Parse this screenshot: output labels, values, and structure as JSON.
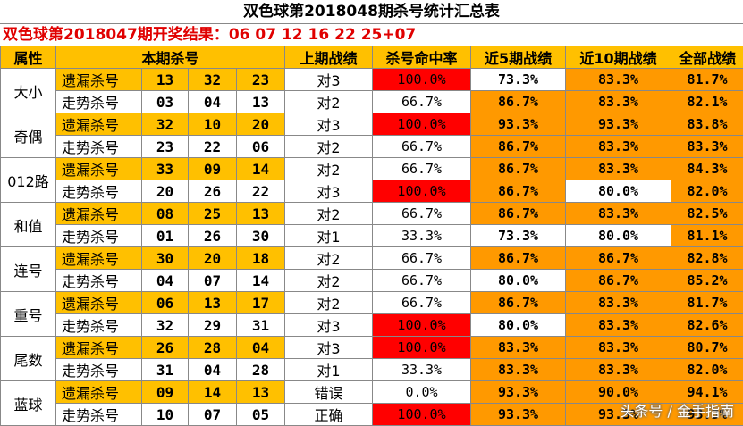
{
  "title": "双色球第2018048期杀号统计汇总表",
  "result_prefix": "双色球第2018047期开奖结果：",
  "result_numbers": "06 07 12 16 22 25+07",
  "headers": [
    "属性",
    "本期杀号",
    "上期战绩",
    "杀号命中率",
    "近5期战绩",
    "近10期战绩",
    "全部战绩"
  ],
  "groups": [
    {
      "attr": "大小",
      "rows": [
        {
          "kind": "遗漏杀号",
          "n1": "13",
          "n2": "32",
          "n3": "23",
          "last": "对3",
          "rate": "100.0%",
          "r5": "73.3%",
          "r10": "83.3%",
          "all": "81.7%"
        },
        {
          "kind": "走势杀号",
          "n1": "03",
          "n2": "04",
          "n3": "13",
          "last": "对2",
          "rate": "66.7%",
          "r5": "86.7%",
          "r10": "83.3%",
          "all": "82.1%"
        }
      ]
    },
    {
      "attr": "奇偶",
      "rows": [
        {
          "kind": "遗漏杀号",
          "n1": "32",
          "n2": "10",
          "n3": "20",
          "last": "对3",
          "rate": "100.0%",
          "r5": "93.3%",
          "r10": "93.3%",
          "all": "83.8%"
        },
        {
          "kind": "走势杀号",
          "n1": "23",
          "n2": "22",
          "n3": "06",
          "last": "对2",
          "rate": "66.7%",
          "r5": "86.7%",
          "r10": "83.3%",
          "all": "83.3%"
        }
      ]
    },
    {
      "attr": "012路",
      "rows": [
        {
          "kind": "遗漏杀号",
          "n1": "33",
          "n2": "09",
          "n3": "14",
          "last": "对2",
          "rate": "66.7%",
          "r5": "86.7%",
          "r10": "83.3%",
          "all": "84.3%"
        },
        {
          "kind": "走势杀号",
          "n1": "20",
          "n2": "26",
          "n3": "22",
          "last": "对3",
          "rate": "100.0%",
          "r5": "86.7%",
          "r10": "80.0%",
          "all": "82.0%"
        }
      ]
    },
    {
      "attr": "和值",
      "rows": [
        {
          "kind": "遗漏杀号",
          "n1": "08",
          "n2": "25",
          "n3": "13",
          "last": "对2",
          "rate": "66.7%",
          "r5": "86.7%",
          "r10": "83.3%",
          "all": "82.5%"
        },
        {
          "kind": "走势杀号",
          "n1": "01",
          "n2": "26",
          "n3": "30",
          "last": "对1",
          "rate": "33.3%",
          "r5": "73.3%",
          "r10": "80.0%",
          "all": "81.1%"
        }
      ]
    },
    {
      "attr": "连号",
      "rows": [
        {
          "kind": "遗漏杀号",
          "n1": "30",
          "n2": "20",
          "n3": "18",
          "last": "对2",
          "rate": "66.7%",
          "r5": "86.7%",
          "r10": "86.7%",
          "all": "82.8%"
        },
        {
          "kind": "走势杀号",
          "n1": "04",
          "n2": "07",
          "n3": "14",
          "last": "对2",
          "rate": "66.7%",
          "r5": "80.0%",
          "r10": "86.7%",
          "all": "85.2%"
        }
      ]
    },
    {
      "attr": "重号",
      "rows": [
        {
          "kind": "遗漏杀号",
          "n1": "06",
          "n2": "13",
          "n3": "17",
          "last": "对2",
          "rate": "66.7%",
          "r5": "86.7%",
          "r10": "83.3%",
          "all": "81.7%"
        },
        {
          "kind": "走势杀号",
          "n1": "32",
          "n2": "29",
          "n3": "31",
          "last": "对3",
          "rate": "100.0%",
          "r5": "80.0%",
          "r10": "83.3%",
          "all": "82.6%"
        }
      ]
    },
    {
      "attr": "尾数",
      "rows": [
        {
          "kind": "遗漏杀号",
          "n1": "26",
          "n2": "28",
          "n3": "04",
          "last": "对3",
          "rate": "100.0%",
          "r5": "83.3%",
          "r10": "83.3%",
          "all": "80.7%"
        },
        {
          "kind": "走势杀号",
          "n1": "31",
          "n2": "04",
          "n3": "28",
          "last": "对1",
          "rate": "33.3%",
          "r5": "83.3%",
          "r10": "83.3%",
          "all": "82.0%"
        }
      ]
    },
    {
      "attr": "蓝球",
      "rows": [
        {
          "kind": "遗漏杀号",
          "n1": "09",
          "n2": "14",
          "n3": "13",
          "last": "错误",
          "rate": "0.0%",
          "r5": "93.3%",
          "r10": "90.0%",
          "all": "94.1%"
        },
        {
          "kind": "走势杀号",
          "n1": "10",
          "n2": "07",
          "n3": "05",
          "last": "正确",
          "rate": "100.0%",
          "r5": "93.3%",
          "r10": "93.3%",
          "all": "93.3%"
        }
      ]
    }
  ],
  "watermark": "头条号 / 金手指南",
  "colors": {
    "header_yellow": "#ffc000",
    "light_yellow": "#ffe699",
    "orange": "#ff9900",
    "red": "#ff0000",
    "result_red": "#e00000"
  }
}
